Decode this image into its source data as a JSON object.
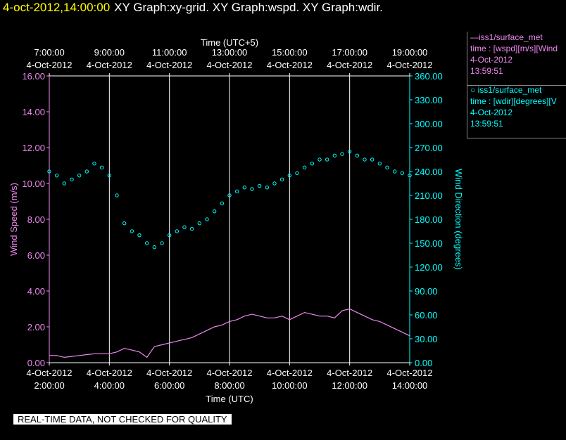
{
  "header": {
    "timestamp": "4-oct-2012,14:00:00",
    "graphs": "XY Graph:xy-grid.  XY Graph:wspd.  XY Graph:wdir."
  },
  "legend": {
    "wspd": {
      "line1": "—iss1/surface_met",
      "line2": "time : [wspd][m/s][Wind",
      "line3": "4-Oct-2012",
      "line4": "13:59:51"
    },
    "wdir": {
      "line1": "○ iss1/surface_met",
      "line2": "time : [wdir][degrees][V",
      "line3": "4-Oct-2012",
      "line4": "13:59:51"
    }
  },
  "notice": "REAL-TIME DATA, NOT CHECKED FOR QUALITY",
  "colors": {
    "wspd": "#ee88ee",
    "wdir": "#00ffff",
    "axis": "#ffffff",
    "grid": "#ffffff"
  },
  "chart_data": {
    "type": "line",
    "xlabel_bottom": "Time (UTC)",
    "xlabel_top": "Time (UTC+5)",
    "ylabel_left": "Wind Speed (m/s)",
    "ylabel_right": "Wind Direction (degrees)",
    "x_range_hours_utc": [
      2,
      14
    ],
    "ylim_left": [
      0,
      16
    ],
    "ylim_right": [
      0,
      360
    ],
    "grid": "vertical",
    "bottom_ticks": [
      {
        "h": 2,
        "date": "4-Oct-2012",
        "time": "2:00:00"
      },
      {
        "h": 4,
        "date": "4-Oct-2012",
        "time": "4:00:00"
      },
      {
        "h": 6,
        "date": "4-Oct-2012",
        "time": "6:00:00"
      },
      {
        "h": 8,
        "date": "4-Oct-2012",
        "time": "8:00:00"
      },
      {
        "h": 10,
        "date": "4-Oct-2012",
        "time": "10:00:00"
      },
      {
        "h": 12,
        "date": "4-Oct-2012",
        "time": "12:00:00"
      },
      {
        "h": 14,
        "date": "4-Oct-2012",
        "time": "14:00:00"
      }
    ],
    "top_ticks": [
      {
        "h": 2,
        "date": "4-Oct-2012",
        "time": "7:00:00"
      },
      {
        "h": 4,
        "date": "4-Oct-2012",
        "time": "9:00:00"
      },
      {
        "h": 6,
        "date": "4-Oct-2012",
        "time": "11:00:00"
      },
      {
        "h": 8,
        "date": "4-Oct-2012",
        "time": "13:00:00"
      },
      {
        "h": 10,
        "date": "4-Oct-2012",
        "time": "15:00:00"
      },
      {
        "h": 12,
        "date": "4-Oct-2012",
        "time": "17:00:00"
      },
      {
        "h": 14,
        "date": "4-Oct-2012",
        "time": "19:00:00"
      }
    ],
    "left_ticks": [
      "0.00",
      "2.00",
      "4.00",
      "6.00",
      "8.00",
      "10.00",
      "12.00",
      "14.00",
      "16.00"
    ],
    "right_ticks": [
      "0.00",
      "30.00",
      "60.00",
      "90.00",
      "120.00",
      "150.00",
      "180.00",
      "210.00",
      "240.00",
      "270.00",
      "300.00",
      "330.00",
      "360.00"
    ],
    "series": [
      {
        "name": "iss1/surface_met time : [wspd][m/s]",
        "kind": "line",
        "x": [
          2.0,
          2.25,
          2.5,
          2.75,
          3.0,
          3.25,
          3.5,
          3.75,
          4.0,
          4.25,
          4.5,
          4.75,
          5.0,
          5.25,
          5.5,
          5.75,
          6.0,
          6.25,
          6.5,
          6.75,
          7.0,
          7.25,
          7.5,
          7.75,
          8.0,
          8.25,
          8.5,
          8.75,
          9.0,
          9.25,
          9.5,
          9.75,
          10.0,
          10.25,
          10.5,
          10.75,
          11.0,
          11.25,
          11.5,
          11.75,
          12.0,
          12.25,
          12.5,
          12.75,
          13.0,
          13.25,
          13.5,
          13.75,
          14.0
        ],
        "y": [
          0.4,
          0.4,
          0.3,
          0.35,
          0.4,
          0.45,
          0.5,
          0.5,
          0.5,
          0.6,
          0.8,
          0.7,
          0.6,
          0.3,
          0.9,
          1.0,
          1.1,
          1.2,
          1.3,
          1.4,
          1.6,
          1.8,
          2.0,
          2.1,
          2.3,
          2.4,
          2.6,
          2.7,
          2.6,
          2.5,
          2.5,
          2.6,
          2.4,
          2.6,
          2.8,
          2.7,
          2.6,
          2.6,
          2.5,
          2.9,
          3.0,
          2.8,
          2.6,
          2.4,
          2.3,
          2.1,
          1.9,
          1.7,
          1.5
        ]
      },
      {
        "name": "iss1/surface_met time : [wdir][degrees]",
        "kind": "scatter",
        "x": [
          2.0,
          2.25,
          2.5,
          2.75,
          3.0,
          3.25,
          3.5,
          3.75,
          4.0,
          4.25,
          4.5,
          4.75,
          5.0,
          5.25,
          5.5,
          5.75,
          6.0,
          6.25,
          6.5,
          6.75,
          7.0,
          7.25,
          7.5,
          7.75,
          8.0,
          8.25,
          8.5,
          8.75,
          9.0,
          9.25,
          9.5,
          9.75,
          10.0,
          10.25,
          10.5,
          10.75,
          11.0,
          11.25,
          11.5,
          11.75,
          12.0,
          12.25,
          12.5,
          12.75,
          13.0,
          13.25,
          13.5,
          13.75,
          14.0
        ],
        "y": [
          240,
          235,
          225,
          230,
          235,
          240,
          250,
          245,
          235,
          210,
          175,
          165,
          160,
          150,
          145,
          150,
          160,
          165,
          170,
          168,
          175,
          180,
          190,
          200,
          210,
          215,
          220,
          218,
          222,
          220,
          225,
          230,
          235,
          238,
          245,
          250,
          255,
          255,
          260,
          262,
          265,
          260,
          255,
          255,
          250,
          245,
          240,
          238,
          235
        ]
      }
    ]
  }
}
